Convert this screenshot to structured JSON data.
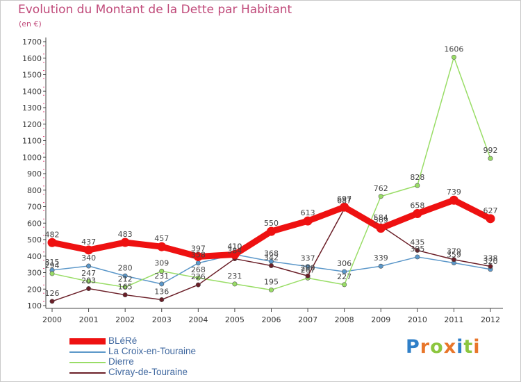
{
  "title": "Evolution du Montant de la Dette par Habitant",
  "unit": "(en €)",
  "logo": {
    "text": "Proxiti",
    "letter_colors": [
      "#2f7fc8",
      "#e8762a",
      "#8cc63f",
      "#e8762a",
      "#2f7fc8",
      "#8cc63f",
      "#e8762a"
    ]
  },
  "chart_data": {
    "type": "line",
    "title": "Evolution du Montant de la Dette par Habitant",
    "ylabel": "(en €)",
    "xlabel": "",
    "x": [
      "2000",
      "2001",
      "2002",
      "2003",
      "2004",
      "2005",
      "2006",
      "2007",
      "2008",
      "2009",
      "2010",
      "2011",
      "2012"
    ],
    "ylim": [
      100,
      1700
    ],
    "yticks": [
      100,
      200,
      300,
      400,
      500,
      600,
      700,
      800,
      900,
      1000,
      1100,
      1200,
      1300,
      1400,
      1500,
      1600,
      1700
    ],
    "grid": false,
    "legend_position": "bottom-left",
    "series": [
      {
        "name": "BLéRé",
        "color": "#ee1111",
        "emphasis": true,
        "values": [
          482,
          437,
          483,
          457,
          397,
          410,
          550,
          613,
          697,
          569,
          658,
          739,
          627
        ],
        "labels": [
          "482",
          "437",
          "483",
          "457",
          "397",
          "410",
          "550",
          "613",
          "697",
          "569",
          "658",
          "739",
          "627"
        ]
      },
      {
        "name": "La Croix-en-Touraine",
        "color": "#5b97c9",
        "emphasis": false,
        "values": [
          315,
          340,
          280,
          231,
          358,
          410,
          368,
          337,
          306,
          339,
          395,
          359,
          320
        ],
        "labels": [
          "315",
          "340",
          "280",
          "231",
          "358",
          "410",
          "368",
          "337",
          "306",
          "339",
          "395",
          "359",
          "320"
        ]
      },
      {
        "name": "Dierre",
        "color": "#99dd66",
        "emphasis": false,
        "values": [
          294,
          247,
          212,
          309,
          268,
          231,
          195,
          267,
          227,
          762,
          828,
          1606,
          992
        ],
        "labels": [
          "294",
          "247",
          "212",
          "309",
          "268",
          "231",
          "195",
          "267",
          "227",
          "762",
          "828",
          "1606",
          "992"
        ]
      },
      {
        "name": "Civray-de-Touraine",
        "color": "#6b1f28",
        "emphasis": false,
        "values": [
          126,
          203,
          165,
          136,
          226,
          384,
          342,
          280,
          687,
          584,
          435,
          379,
          338
        ],
        "labels": [
          "126",
          "203",
          "165",
          "136",
          "226",
          "384",
          "342",
          "280",
          "687",
          "584",
          "435",
          "379",
          "338"
        ]
      }
    ]
  }
}
